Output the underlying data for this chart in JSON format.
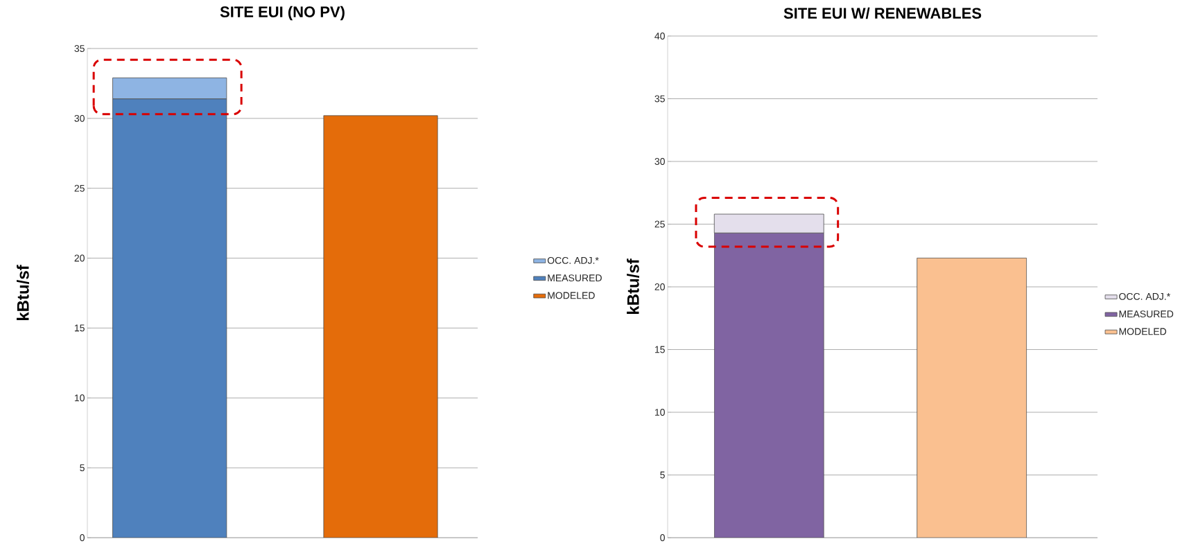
{
  "chart_data": [
    {
      "type": "bar",
      "stacked": true,
      "title": "SITE EUI (NO PV)",
      "ylabel": "kBtu/sf",
      "categories": [
        null,
        null
      ],
      "series": [
        {
          "name": "MODELED",
          "color": "#e46c0a",
          "values": [
            null,
            30.2
          ]
        },
        {
          "name": "MEASURED",
          "color": "#4f81bd",
          "values": [
            31.4,
            null
          ]
        },
        {
          "name": "OCC. ADJ.*",
          "color": "#8eb4e3",
          "values": [
            1.5,
            null
          ]
        }
      ],
      "ylim": [
        0,
        35
      ],
      "yticks": [
        0,
        5,
        10,
        15,
        20,
        25,
        30,
        35
      ],
      "grid": "y",
      "legend": "right"
    },
    {
      "type": "bar",
      "stacked": true,
      "title": "SITE EUI W/ RENEWABLES",
      "ylabel": "kBtu/sf",
      "categories": [
        null,
        null
      ],
      "series": [
        {
          "name": "MODELED",
          "color": "#fac090",
          "values": [
            null,
            22.3
          ]
        },
        {
          "name": "MEASURED",
          "color": "#8064a2",
          "values": [
            24.3,
            null
          ]
        },
        {
          "name": "OCC. ADJ.*",
          "color": "#e4dfec",
          "values": [
            1.5,
            null
          ]
        }
      ],
      "ylim": [
        0,
        40
      ],
      "yticks": [
        0,
        5,
        10,
        15,
        20,
        25,
        30,
        35,
        40
      ],
      "grid": "y",
      "legend": "right"
    }
  ]
}
